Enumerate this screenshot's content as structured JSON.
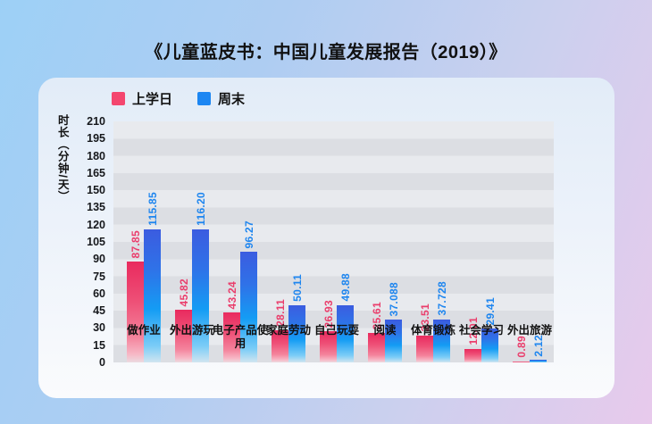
{
  "page_title": "《儿童蓝皮书：中国儿童发展报告（2019）》",
  "legend": {
    "items": [
      {
        "label": "上学日",
        "color": "#f4466f"
      },
      {
        "label": "周末",
        "color": "#1c86f2"
      }
    ]
  },
  "chart_data": {
    "type": "bar",
    "title": "《儿童蓝皮书：中国儿童发展报告（2019）》",
    "xlabel": "",
    "ylabel": "时长（分钟/天）",
    "ylim": [
      0,
      210
    ],
    "ytick_step": 15,
    "yticks": [
      0,
      15,
      30,
      45,
      60,
      75,
      90,
      105,
      120,
      135,
      150,
      165,
      180,
      195,
      210
    ],
    "grid": "horizontal-bands",
    "legend_position": "top-left",
    "categories": [
      "做作业",
      "外出游玩",
      "电子产品使用",
      "家庭劳动",
      "自己玩耍",
      "阅读",
      "体育锻炼",
      "社会学习",
      "外出旅游"
    ],
    "series": [
      {
        "name": "上学日",
        "color": "#ea3e6c",
        "values": [
          87.85,
          45.82,
          43.24,
          28.11,
          26.93,
          25.61,
          23.51,
          12.01,
          0.89
        ],
        "labels": [
          "87.85",
          "45.82",
          "43.24",
          "28.11",
          "26.93",
          "25.61",
          "23.51",
          "12.01",
          "0.89"
        ]
      },
      {
        "name": "周末",
        "color": "#1f86ef",
        "values": [
          115.85,
          116.2,
          96.27,
          50.11,
          49.88,
          37.088,
          37.728,
          29.41,
          2.12
        ],
        "labels": [
          "115.85",
          "116.20",
          "96.27",
          "50.11",
          "49.88",
          "37.088",
          "37.728",
          "29.41",
          "2.12"
        ]
      }
    ]
  }
}
